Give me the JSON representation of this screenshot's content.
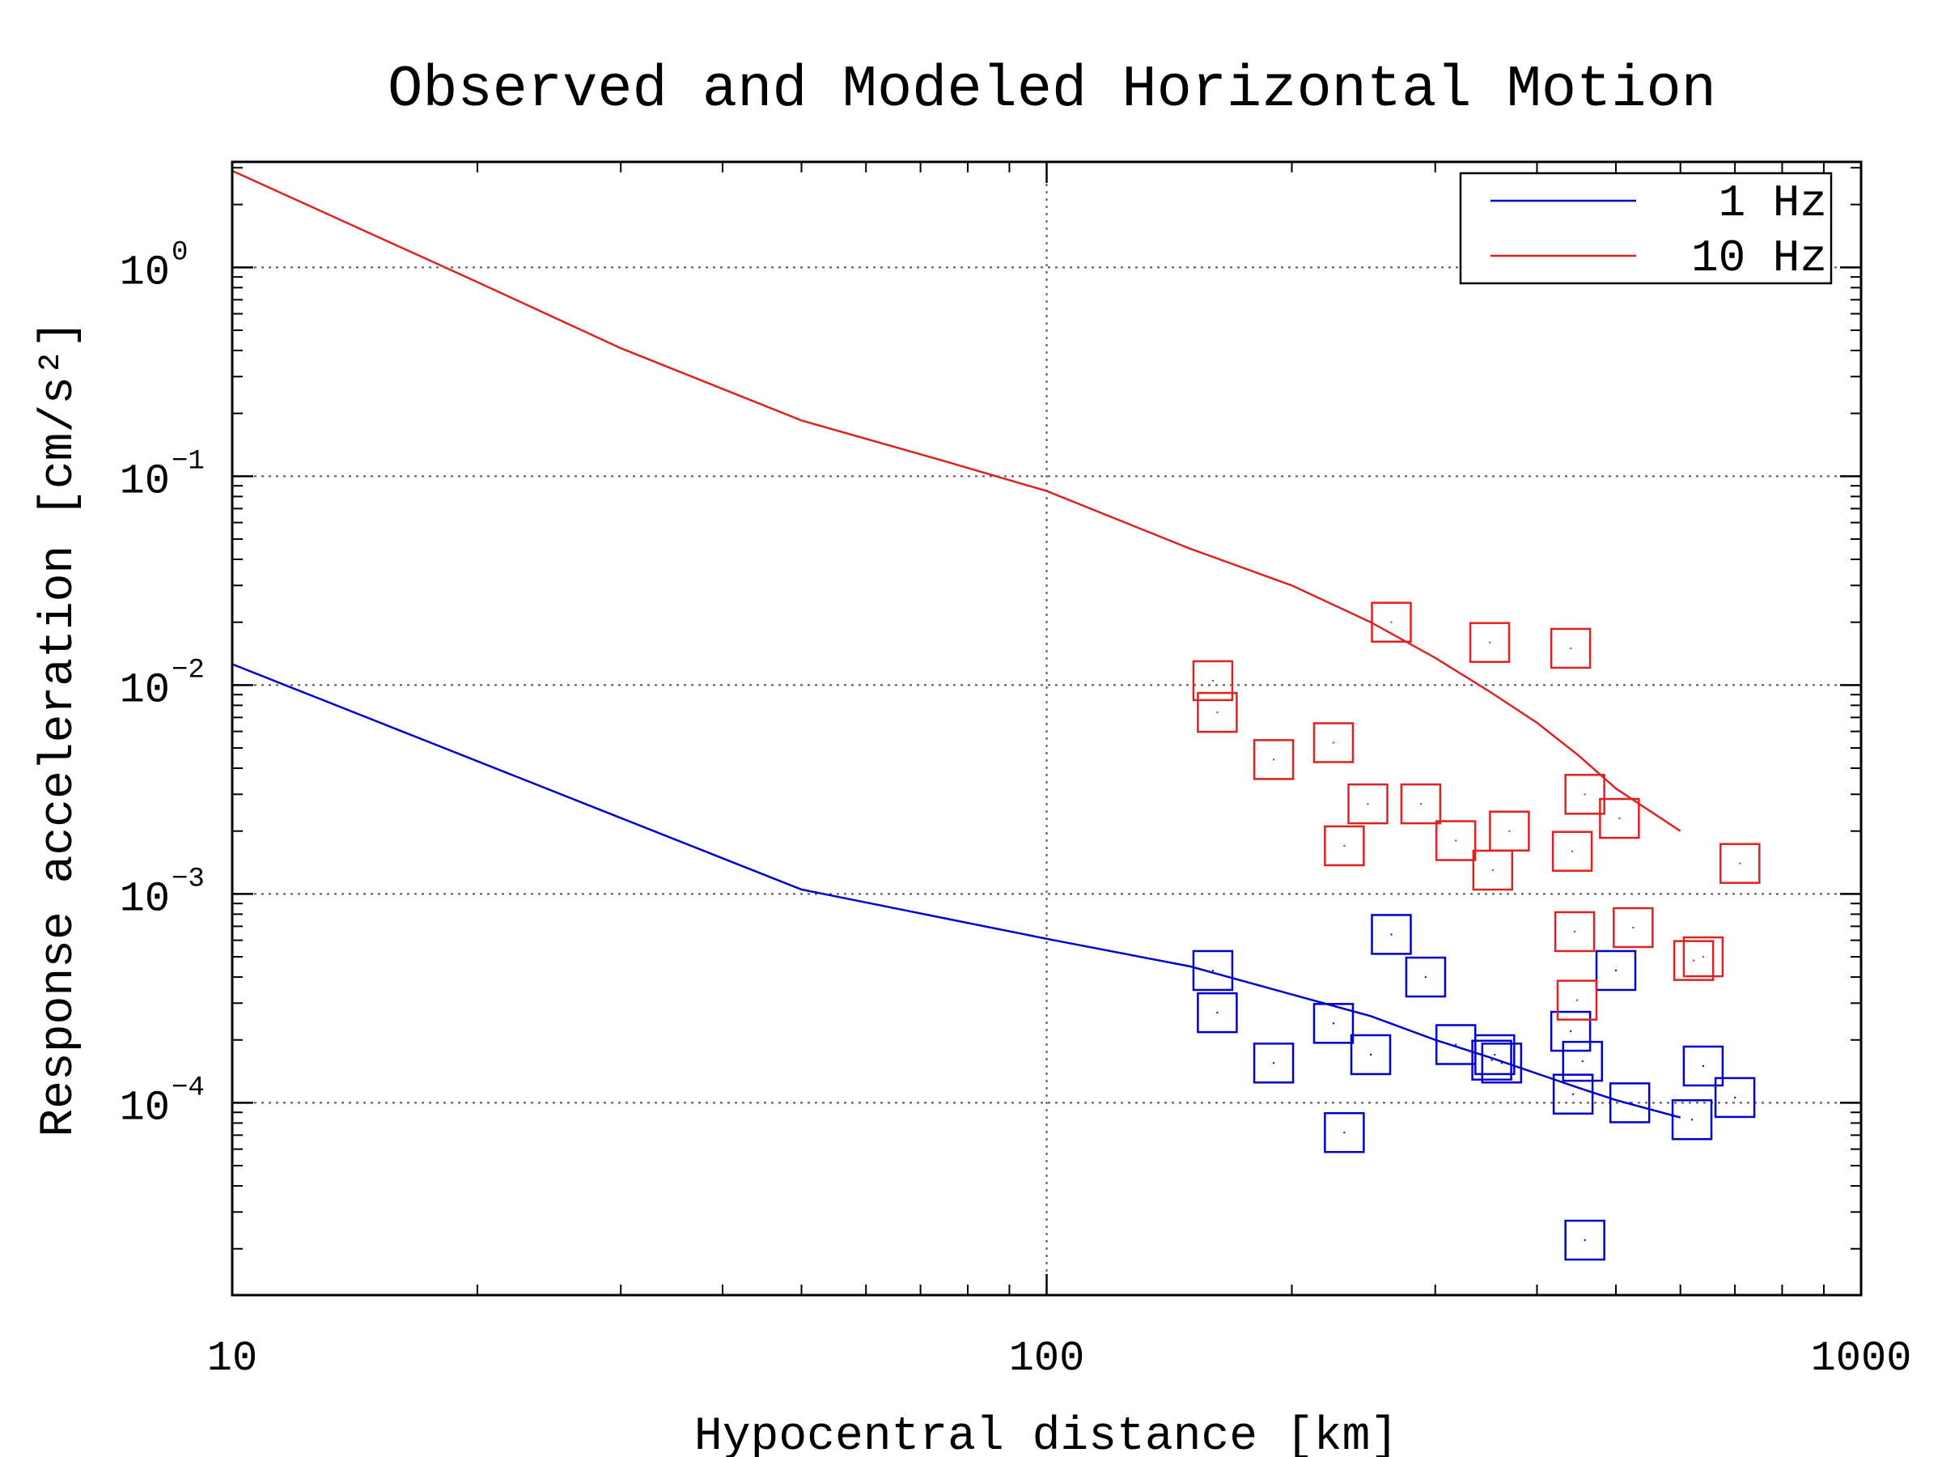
{
  "chart_data": {
    "type": "scatter",
    "title": "Observed and Modeled Horizontal Motion",
    "xlabel": "Hypocentral distance [km]",
    "ylabel": "Response acceleration [cm/s²]",
    "x_scale": "log",
    "y_scale": "log",
    "xlim": [
      10,
      1000
    ],
    "ylim": [
      1.2e-05,
      3.2
    ],
    "grid": true,
    "legend_position": "top-right",
    "x_ticks": [
      {
        "value": 10,
        "label": "10"
      },
      {
        "value": 100,
        "label": "100"
      },
      {
        "value": 1000,
        "label": "1000"
      }
    ],
    "y_ticks": [
      {
        "value": 1,
        "base": "10",
        "exp": "0"
      },
      {
        "value": 0.1,
        "base": "10",
        "exp": "−1"
      },
      {
        "value": 0.01,
        "base": "10",
        "exp": "−2"
      },
      {
        "value": 0.001,
        "base": "10",
        "exp": "−3"
      },
      {
        "value": 0.0001,
        "base": "10",
        "exp": "−4"
      }
    ],
    "series": [
      {
        "name": "1 Hz",
        "color": "#0000cc",
        "model_line": {
          "x": [
            10,
            50,
            100,
            150,
            200,
            250,
            300,
            350,
            400,
            450,
            500,
            600
          ],
          "y": [
            0.0126,
            0.00105,
            0.00061,
            0.00045,
            0.00033,
            0.00026,
            0.0002,
            0.000165,
            0.000138,
            0.000118,
            0.000103,
            8.5e-05
          ]
        },
        "observed": {
          "x": [
            160,
            162,
            190,
            225,
            232,
            250,
            265,
            292,
            318,
            352,
            355,
            362,
            440,
            443,
            455,
            458,
            500,
            520,
            620,
            640,
            700
          ],
          "y": [
            0.00043,
            0.00027,
            0.000155,
            0.00024,
            7.2e-05,
            0.00017,
            0.00064,
            0.0004,
            0.00019,
            0.00016,
            0.00017,
            0.000155,
            0.00022,
            0.00011,
            0.000158,
            2.2e-05,
            0.00043,
            0.0001,
            8.3e-05,
            0.00015,
            0.000106
          ]
        }
      },
      {
        "name": "10 Hz",
        "color": "#dd2222",
        "model_line": {
          "x": [
            10,
            20,
            30,
            50,
            75,
            100,
            150,
            200,
            250,
            300,
            350,
            400,
            450,
            500,
            600
          ],
          "y": [
            2.9,
            0.85,
            0.41,
            0.185,
            0.118,
            0.085,
            0.045,
            0.03,
            0.02,
            0.0135,
            0.0093,
            0.0066,
            0.0046,
            0.0032,
            0.002
          ]
        },
        "observed": {
          "x": [
            160,
            162,
            190,
            225,
            232,
            248,
            265,
            288,
            318,
            350,
            353,
            370,
            440,
            442,
            445,
            448,
            458,
            505,
            525,
            623,
            640,
            710
          ],
          "y": [
            0.0105,
            0.0074,
            0.0044,
            0.0053,
            0.0017,
            0.0027,
            0.02,
            0.0027,
            0.0018,
            0.016,
            0.0013,
            0.002,
            0.015,
            0.0016,
            0.00066,
            0.00031,
            0.003,
            0.0023,
            0.00069,
            0.00048,
            0.0005,
            0.0014
          ]
        }
      }
    ]
  }
}
